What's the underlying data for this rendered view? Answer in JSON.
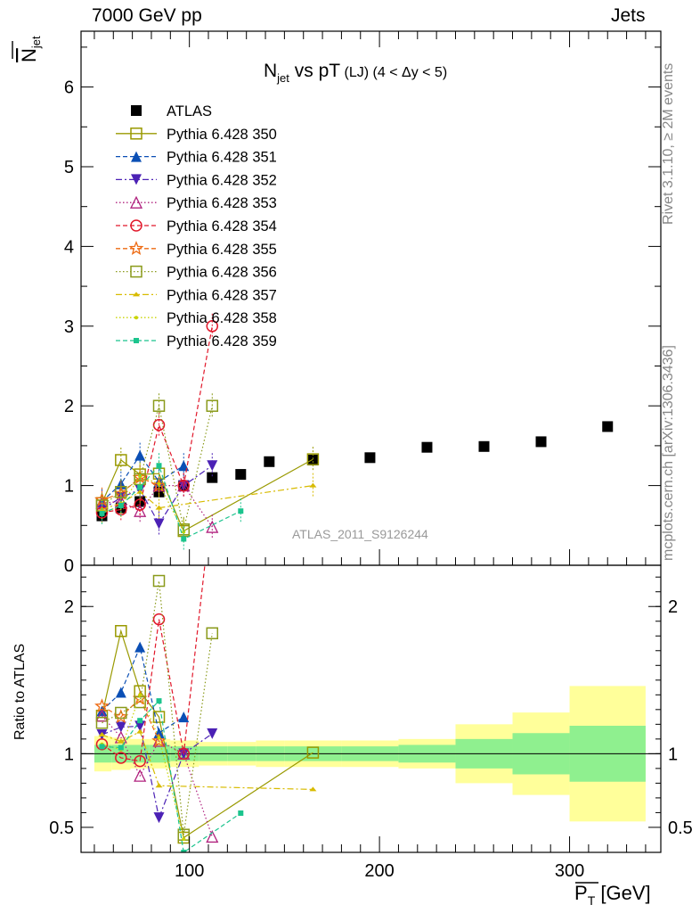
{
  "header": {
    "energy": "7000 GeV pp",
    "category": "Jets"
  },
  "side_texts": {
    "rivet": "Rivet 3.1.10, ≥ 2M events",
    "mcplots": "mcplots.cern.ch [arXiv:1306.3436]"
  },
  "analysis_id": "ATLAS_2011_S9126244",
  "chart_data": [
    {
      "type": "scatter",
      "panel": "main",
      "title": "N_jet vs pT (LJ) (4 < Δy < 5)",
      "title_parts": {
        "main": "N",
        "sub": "jet",
        "rest": " vs pT",
        "small": " (LJ) (4 < Δy < 5)"
      },
      "ylabel": "N_jet (overlined)",
      "xlabel": "P_T (overlined) [GeV]",
      "xlim": [
        43,
        348
      ],
      "ylim": [
        0,
        6.7
      ],
      "yticks": [
        0,
        1,
        2,
        3,
        4,
        5,
        6
      ],
      "xticks": [
        100,
        200,
        300
      ],
      "legend_position": "top-left",
      "series": [
        {
          "name": "ATLAS",
          "color": "#000000",
          "marker": "square-filled",
          "style": "none",
          "x": [
            54,
            64,
            74,
            84,
            97,
            112,
            127,
            142,
            165,
            195,
            225,
            255,
            285,
            320
          ],
          "y": [
            0.62,
            0.72,
            0.8,
            0.92,
            1.0,
            1.1,
            1.14,
            1.3,
            1.32,
            1.35,
            1.48,
            1.49,
            1.55,
            1.74
          ]
        },
        {
          "name": "Pythia 6.428 350",
          "color": "#999900",
          "marker": "square-open",
          "style": "solid",
          "x": [
            54,
            64,
            74,
            84,
            97,
            165
          ],
          "y": [
            0.78,
            1.32,
            1.14,
            1.15,
            0.43,
            1.33
          ]
        },
        {
          "name": "Pythia 6.428 351",
          "color": "#0b4fb5",
          "marker": "triangle-up-filled",
          "style": "dashed",
          "x": [
            54,
            64,
            74,
            84,
            97
          ],
          "y": [
            0.8,
            1.02,
            1.38,
            1.05,
            1.25
          ]
        },
        {
          "name": "Pythia 6.428 352",
          "color": "#4b21b5",
          "marker": "triangle-down-filled",
          "style": "dashdot",
          "x": [
            54,
            64,
            74,
            84,
            97,
            112
          ],
          "y": [
            0.7,
            0.85,
            0.95,
            0.52,
            1.0,
            1.25
          ]
        },
        {
          "name": "Pythia 6.428 353",
          "color": "#b0217e",
          "marker": "triangle-up-open",
          "style": "dotted",
          "x": [
            54,
            64,
            74,
            84,
            97,
            112
          ],
          "y": [
            0.78,
            0.8,
            0.68,
            1.0,
            1.0,
            0.48
          ]
        },
        {
          "name": "Pythia 6.428 354",
          "color": "#e1172a",
          "marker": "circle-open",
          "style": "dashed",
          "x": [
            54,
            64,
            74,
            84,
            97,
            112
          ],
          "y": [
            0.66,
            0.7,
            0.76,
            1.76,
            1.0,
            3.0
          ]
        },
        {
          "name": "Pythia 6.428 355",
          "color": "#ee6a12",
          "marker": "star-open",
          "style": "dashed",
          "x": [
            54,
            64,
            74,
            84
          ],
          "y": [
            0.82,
            0.9,
            1.1,
            1.0
          ]
        },
        {
          "name": "Pythia 6.428 356",
          "color": "#8a9a1a",
          "marker": "square-open",
          "style": "dotted",
          "x": [
            54,
            64,
            74,
            84,
            97,
            112
          ],
          "y": [
            0.75,
            0.92,
            1.08,
            2.0,
            0.45,
            2.0
          ]
        },
        {
          "name": "Pythia 6.428 357",
          "color": "#d8bb00",
          "marker": "tri-small",
          "style": "dashdot",
          "x": [
            54,
            64,
            74,
            84,
            165
          ],
          "y": [
            0.7,
            0.78,
            0.92,
            0.72,
            1.0
          ]
        },
        {
          "name": "Pythia 6.428 358",
          "color": "#c8d400",
          "marker": "dot-small",
          "style": "dotted",
          "x": [
            54,
            64,
            74,
            84,
            97
          ],
          "y": [
            0.66,
            0.74,
            1.12,
            1.02,
            0.42
          ]
        },
        {
          "name": "Pythia 6.428 359",
          "color": "#1bc48d",
          "marker": "square-small",
          "style": "dashed",
          "x": [
            54,
            64,
            74,
            84,
            97,
            127
          ],
          "y": [
            0.65,
            0.75,
            0.98,
            1.25,
            0.33,
            0.68
          ]
        }
      ]
    },
    {
      "type": "line",
      "panel": "ratio",
      "ylabel": "Ratio to ATLAS",
      "ylim": [
        0.33,
        2.28
      ],
      "yticks": [
        0.5,
        1,
        2
      ],
      "ytick_labels": [
        "0.5",
        "1",
        "2"
      ],
      "band_edges": [
        50,
        59,
        69,
        79,
        90,
        105,
        120,
        135,
        150,
        180,
        210,
        240,
        270,
        300,
        340
      ],
      "band_inner": [
        [
          0.94,
          1.06
        ],
        [
          0.94,
          1.06
        ],
        [
          0.94,
          1.06
        ],
        [
          0.94,
          1.06
        ],
        [
          0.95,
          1.05
        ],
        [
          0.95,
          1.05
        ],
        [
          0.95,
          1.05
        ],
        [
          0.95,
          1.05
        ],
        [
          0.95,
          1.05
        ],
        [
          0.95,
          1.05
        ],
        [
          0.94,
          1.06
        ],
        [
          0.9,
          1.1
        ],
        [
          0.86,
          1.14
        ],
        [
          0.81,
          1.19
        ]
      ],
      "band_outer": [
        [
          0.88,
          1.12
        ],
        [
          0.89,
          1.11
        ],
        [
          0.9,
          1.1
        ],
        [
          0.9,
          1.1
        ],
        [
          0.91,
          1.09
        ],
        [
          0.92,
          1.08
        ],
        [
          0.92,
          1.08
        ],
        [
          0.91,
          1.09
        ],
        [
          0.91,
          1.09
        ],
        [
          0.91,
          1.09
        ],
        [
          0.9,
          1.1
        ],
        [
          0.8,
          1.2
        ],
        [
          0.72,
          1.28
        ],
        [
          0.54,
          1.46
        ]
      ],
      "band_colors": {
        "inner": "#8ff08f",
        "outer": "#ffff9a"
      }
    }
  ]
}
